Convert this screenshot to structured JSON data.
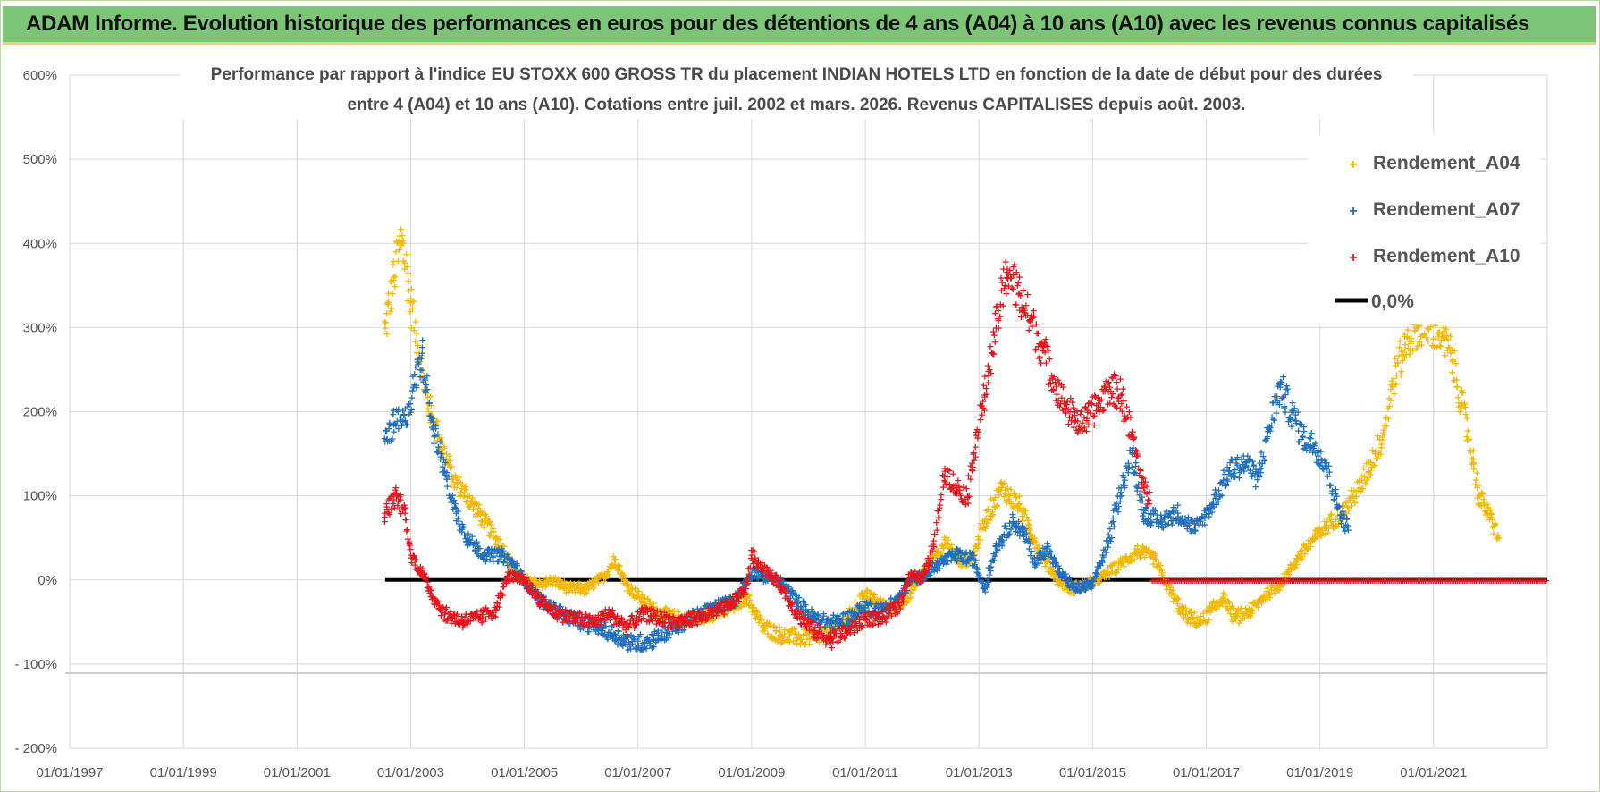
{
  "banner": {
    "title": "ADAM Informe. Evolution historique des performances en euros pour des détentions de 4 ans (A04) à 10 ans (A10) avec les revenus connus capitalisés"
  },
  "colors": {
    "banner_bg": "#7cc576",
    "a04": "#f5b800",
    "a07": "#1f6fbf",
    "a10": "#e8141c",
    "zero": "#000000",
    "grid": "#d9d9d9"
  },
  "chart_data": {
    "type": "scatter",
    "title_line1": "Performance par rapport à l'indice EU STOXX 600 GROSS TR  du placement INDIAN HOTELS LTD en fonction de la date de début pour des durées",
    "title_line2": "entre 4 (A04) et 10 ans (A10). Cotations entre juil. 2002 et mars. 2026. Revenus CAPITALISES depuis août. 2003.",
    "xlabel": "",
    "ylabel": "",
    "x_ticks": [
      "01/01/1997",
      "01/01/1999",
      "01/01/2001",
      "01/01/2003",
      "01/01/2005",
      "01/01/2007",
      "01/01/2009",
      "01/01/2011",
      "01/01/2013",
      "01/01/2015",
      "01/01/2017",
      "01/01/2019",
      "01/01/2021"
    ],
    "y_ticks": [
      "600%",
      "500%",
      "400%",
      "300%",
      "200%",
      "100%",
      "0%",
      "- 100%",
      "- 200%"
    ],
    "xlim": [
      1997.0,
      2023.0
    ],
    "ylim": [
      -200,
      600
    ],
    "legend_position": "top-right",
    "series": [
      {
        "name": "Rendement_A04",
        "points": [
          [
            2002.55,
            300
          ],
          [
            2002.7,
            360
          ],
          [
            2002.85,
            410
          ],
          [
            2003.0,
            330
          ],
          [
            2003.15,
            270
          ],
          [
            2003.3,
            210
          ],
          [
            2003.5,
            170
          ],
          [
            2003.75,
            120
          ],
          [
            2004.0,
            100
          ],
          [
            2004.3,
            70
          ],
          [
            2004.6,
            40
          ],
          [
            2004.9,
            5
          ],
          [
            2005.2,
            -5
          ],
          [
            2005.5,
            0
          ],
          [
            2005.8,
            -10
          ],
          [
            2006.1,
            -10
          ],
          [
            2006.4,
            5
          ],
          [
            2006.6,
            25
          ],
          [
            2006.8,
            -5
          ],
          [
            2007.1,
            -25
          ],
          [
            2007.4,
            -40
          ],
          [
            2007.7,
            -45
          ],
          [
            2008.0,
            -45
          ],
          [
            2008.3,
            -40
          ],
          [
            2008.6,
            -35
          ],
          [
            2008.9,
            -20
          ],
          [
            2009.0,
            -30
          ],
          [
            2009.2,
            -55
          ],
          [
            2009.5,
            -65
          ],
          [
            2009.8,
            -68
          ],
          [
            2010.1,
            -68
          ],
          [
            2010.4,
            -62
          ],
          [
            2010.7,
            -45
          ],
          [
            2011.0,
            -15
          ],
          [
            2011.2,
            -25
          ],
          [
            2011.5,
            -35
          ],
          [
            2011.8,
            -15
          ],
          [
            2012.1,
            20
          ],
          [
            2012.4,
            45
          ],
          [
            2012.7,
            20
          ],
          [
            2012.9,
            30
          ],
          [
            2013.1,
            70
          ],
          [
            2013.4,
            110
          ],
          [
            2013.7,
            90
          ],
          [
            2013.9,
            60
          ],
          [
            2014.1,
            30
          ],
          [
            2014.4,
            0
          ],
          [
            2014.6,
            -10
          ],
          [
            2014.9,
            -5
          ],
          [
            2015.2,
            5
          ],
          [
            2015.5,
            20
          ],
          [
            2015.8,
            35
          ],
          [
            2016.1,
            25
          ],
          [
            2016.3,
            -5
          ],
          [
            2016.6,
            -40
          ],
          [
            2016.9,
            -50
          ],
          [
            2017.1,
            -35
          ],
          [
            2017.3,
            -20
          ],
          [
            2017.5,
            -45
          ],
          [
            2017.8,
            -35
          ],
          [
            2018.0,
            -20
          ],
          [
            2018.3,
            -5
          ],
          [
            2018.6,
            25
          ],
          [
            2018.9,
            50
          ],
          [
            2019.2,
            70
          ],
          [
            2019.4,
            80
          ],
          [
            2019.7,
            110
          ],
          [
            2019.9,
            140
          ],
          [
            2020.1,
            170
          ],
          [
            2020.3,
            240
          ],
          [
            2020.5,
            280
          ],
          [
            2020.7,
            300
          ],
          [
            2020.9,
            300
          ],
          [
            2021.1,
            295
          ],
          [
            2021.3,
            270
          ],
          [
            2021.5,
            210
          ],
          [
            2021.7,
            140
          ],
          [
            2021.8,
            100
          ],
          [
            2022.0,
            75
          ],
          [
            2022.15,
            50
          ]
        ]
      },
      {
        "name": "Rendement_A07",
        "points": [
          [
            2002.55,
            165
          ],
          [
            2002.7,
            185
          ],
          [
            2002.9,
            190
          ],
          [
            2003.05,
            230
          ],
          [
            2003.2,
            270
          ],
          [
            2003.4,
            180
          ],
          [
            2003.6,
            130
          ],
          [
            2003.8,
            80
          ],
          [
            2004.0,
            50
          ],
          [
            2004.3,
            30
          ],
          [
            2004.6,
            30
          ],
          [
            2004.8,
            20
          ],
          [
            2005.1,
            -10
          ],
          [
            2005.4,
            -30
          ],
          [
            2005.7,
            -40
          ],
          [
            2006.0,
            -50
          ],
          [
            2006.3,
            -55
          ],
          [
            2006.6,
            -65
          ],
          [
            2006.9,
            -75
          ],
          [
            2007.2,
            -72
          ],
          [
            2007.5,
            -62
          ],
          [
            2007.8,
            -50
          ],
          [
            2008.1,
            -40
          ],
          [
            2008.4,
            -30
          ],
          [
            2008.7,
            -25
          ],
          [
            2009.0,
            10
          ],
          [
            2009.2,
            5
          ],
          [
            2009.5,
            0
          ],
          [
            2009.8,
            -25
          ],
          [
            2010.1,
            -45
          ],
          [
            2010.4,
            -50
          ],
          [
            2010.7,
            -45
          ],
          [
            2011.0,
            -30
          ],
          [
            2011.3,
            -35
          ],
          [
            2011.6,
            -20
          ],
          [
            2011.8,
            0
          ],
          [
            2012.0,
            5
          ],
          [
            2012.3,
            20
          ],
          [
            2012.6,
            30
          ],
          [
            2012.9,
            25
          ],
          [
            2013.1,
            -10
          ],
          [
            2013.3,
            40
          ],
          [
            2013.6,
            70
          ],
          [
            2013.8,
            55
          ],
          [
            2014.0,
            20
          ],
          [
            2014.2,
            40
          ],
          [
            2014.4,
            10
          ],
          [
            2014.7,
            -10
          ],
          [
            2015.0,
            -5
          ],
          [
            2015.3,
            50
          ],
          [
            2015.5,
            110
          ],
          [
            2015.7,
            150
          ],
          [
            2015.9,
            80
          ],
          [
            2016.2,
            70
          ],
          [
            2016.5,
            80
          ],
          [
            2016.8,
            60
          ],
          [
            2017.1,
            90
          ],
          [
            2017.4,
            130
          ],
          [
            2017.7,
            140
          ],
          [
            2017.9,
            120
          ],
          [
            2018.1,
            180
          ],
          [
            2018.3,
            230
          ],
          [
            2018.5,
            200
          ],
          [
            2018.7,
            170
          ],
          [
            2018.9,
            160
          ],
          [
            2019.1,
            140
          ],
          [
            2019.3,
            90
          ],
          [
            2019.5,
            60
          ]
        ]
      },
      {
        "name": "Rendement_A10",
        "points": [
          [
            2002.55,
            80
          ],
          [
            2002.75,
            100
          ],
          [
            2002.9,
            80
          ],
          [
            2003.0,
            30
          ],
          [
            2003.2,
            10
          ],
          [
            2003.4,
            -20
          ],
          [
            2003.6,
            -40
          ],
          [
            2003.9,
            -48
          ],
          [
            2004.2,
            -45
          ],
          [
            2004.5,
            -35
          ],
          [
            2004.7,
            5
          ],
          [
            2005.0,
            0
          ],
          [
            2005.3,
            -25
          ],
          [
            2005.6,
            -40
          ],
          [
            2005.9,
            -45
          ],
          [
            2006.2,
            -50
          ],
          [
            2006.5,
            -40
          ],
          [
            2006.8,
            -55
          ],
          [
            2007.1,
            -40
          ],
          [
            2007.4,
            -45
          ],
          [
            2007.7,
            -50
          ],
          [
            2008.0,
            -45
          ],
          [
            2008.3,
            -40
          ],
          [
            2008.6,
            -30
          ],
          [
            2008.9,
            -10
          ],
          [
            2009.0,
            30
          ],
          [
            2009.2,
            15
          ],
          [
            2009.5,
            -5
          ],
          [
            2009.8,
            -40
          ],
          [
            2010.1,
            -60
          ],
          [
            2010.4,
            -70
          ],
          [
            2010.7,
            -60
          ],
          [
            2011.0,
            -45
          ],
          [
            2011.3,
            -45
          ],
          [
            2011.6,
            -30
          ],
          [
            2011.8,
            10
          ],
          [
            2012.0,
            0
          ],
          [
            2012.2,
            40
          ],
          [
            2012.4,
            130
          ],
          [
            2012.6,
            110
          ],
          [
            2012.8,
            100
          ],
          [
            2012.9,
            150
          ],
          [
            2013.1,
            220
          ],
          [
            2013.3,
            300
          ],
          [
            2013.5,
            370
          ],
          [
            2013.7,
            340
          ],
          [
            2013.9,
            310
          ],
          [
            2014.1,
            280
          ],
          [
            2014.3,
            240
          ],
          [
            2014.5,
            210
          ],
          [
            2014.7,
            190
          ],
          [
            2014.9,
            190
          ],
          [
            2015.1,
            210
          ],
          [
            2015.3,
            230
          ],
          [
            2015.5,
            220
          ],
          [
            2015.7,
            170
          ],
          [
            2015.9,
            110
          ],
          [
            2016.0,
            95
          ]
        ]
      }
    ],
    "zero_line": {
      "name": "0,0%",
      "from": 2002.55,
      "to": 2023.0,
      "value": 0
    },
    "red_zero_from": 2016.05
  }
}
